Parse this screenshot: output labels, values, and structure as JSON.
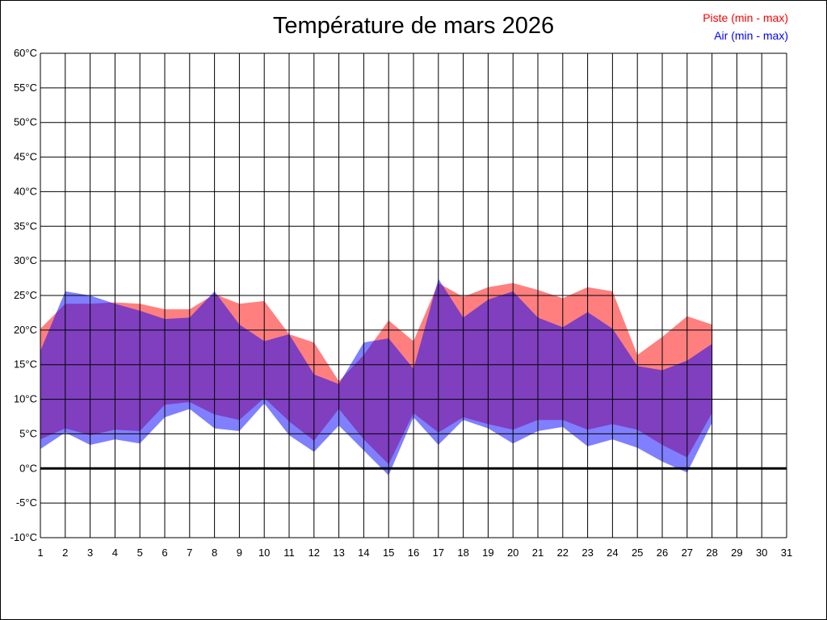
{
  "chart_data": {
    "type": "area",
    "title": "Température de mars 2026",
    "xlabel": "",
    "ylabel": "",
    "x": [
      1,
      2,
      3,
      4,
      5,
      6,
      7,
      8,
      9,
      10,
      11,
      12,
      13,
      14,
      15,
      16,
      17,
      18,
      19,
      20,
      21,
      22,
      23,
      24,
      25,
      26,
      27,
      28
    ],
    "x_ticks": [
      "1",
      "2",
      "3",
      "4",
      "5",
      "6",
      "7",
      "8",
      "9",
      "10",
      "11",
      "12",
      "13",
      "14",
      "15",
      "16",
      "17",
      "18",
      "19",
      "20",
      "21",
      "22",
      "23",
      "24",
      "25",
      "26",
      "27",
      "28",
      "29",
      "30",
      "31"
    ],
    "xlim": [
      1,
      31
    ],
    "ylim": [
      -10,
      60
    ],
    "y_ticks": [
      "-10°C",
      "-5°C",
      "0°C",
      "5°C",
      "10°C",
      "15°C",
      "20°C",
      "25°C",
      "30°C",
      "35°C",
      "40°C",
      "45°C",
      "50°C",
      "55°C",
      "60°C"
    ],
    "grid": true,
    "legend_position": "top-right",
    "series": [
      {
        "name": "Piste (min - max)",
        "color": "#ff0000",
        "min": [
          4.2,
          5.8,
          4.8,
          5.6,
          5.4,
          9.2,
          9.6,
          7.8,
          7.0,
          10.2,
          6.8,
          4.0,
          8.6,
          4.2,
          0.6,
          8.0,
          5.2,
          7.4,
          6.4,
          5.6,
          7.0,
          7.0,
          5.6,
          6.4,
          5.6,
          3.4,
          1.6,
          8.0
        ],
        "max": [
          20.2,
          23.8,
          23.8,
          24.0,
          23.8,
          23.0,
          23.0,
          25.2,
          23.8,
          24.2,
          19.4,
          18.2,
          12.6,
          16.4,
          21.4,
          18.4,
          26.8,
          24.8,
          26.2,
          26.8,
          25.8,
          24.6,
          26.2,
          25.6,
          16.4,
          19.0,
          22.0,
          20.8
        ]
      },
      {
        "name": "Air (min - max)",
        "color": "#0000ff",
        "min": [
          2.8,
          5.2,
          3.4,
          4.2,
          3.6,
          7.4,
          8.6,
          5.8,
          5.4,
          9.4,
          4.8,
          2.4,
          6.2,
          2.6,
          -1.0,
          7.4,
          3.4,
          7.0,
          5.8,
          3.6,
          5.4,
          6.0,
          3.2,
          4.2,
          3.0,
          1.0,
          -0.6,
          6.6
        ],
        "max": [
          17.0,
          25.6,
          25.0,
          23.8,
          22.8,
          21.6,
          21.8,
          25.6,
          20.8,
          18.4,
          19.4,
          13.6,
          12.2,
          18.2,
          18.8,
          14.4,
          27.4,
          21.8,
          24.4,
          25.6,
          21.8,
          20.4,
          22.6,
          20.2,
          14.8,
          14.2,
          15.6,
          18.0
        ]
      }
    ]
  }
}
